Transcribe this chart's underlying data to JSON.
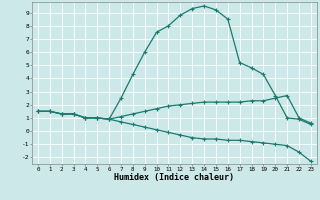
{
  "xlabel": "Humidex (Indice chaleur)",
  "bg_color": "#cce8e8",
  "grid_color": "#ffffff",
  "line_color": "#1a7a6e",
  "xlim": [
    -0.5,
    23.5
  ],
  "ylim": [
    -2.5,
    9.8
  ],
  "xticks": [
    0,
    1,
    2,
    3,
    4,
    5,
    6,
    7,
    8,
    9,
    10,
    11,
    12,
    13,
    14,
    15,
    16,
    17,
    18,
    19,
    20,
    21,
    22,
    23
  ],
  "yticks": [
    -2,
    -1,
    0,
    1,
    2,
    3,
    4,
    5,
    6,
    7,
    8,
    9
  ],
  "curve1_x": [
    0,
    1,
    2,
    3,
    4,
    5,
    6,
    7,
    8,
    9,
    10,
    11,
    12,
    13,
    14,
    15,
    16,
    17,
    18,
    19,
    20,
    21,
    22,
    23
  ],
  "curve1_y": [
    1.5,
    1.5,
    1.3,
    1.3,
    1.0,
    1.0,
    0.9,
    2.5,
    4.3,
    6.0,
    7.5,
    8.0,
    8.8,
    9.3,
    9.5,
    9.2,
    8.5,
    5.2,
    4.8,
    4.3,
    2.7,
    1.0,
    0.9,
    0.5
  ],
  "curve2_x": [
    0,
    1,
    2,
    3,
    4,
    5,
    6,
    7,
    8,
    9,
    10,
    11,
    12,
    13,
    14,
    15,
    16,
    17,
    18,
    19,
    20,
    21,
    22,
    23
  ],
  "curve2_y": [
    1.5,
    1.5,
    1.3,
    1.3,
    1.0,
    1.0,
    0.9,
    1.1,
    1.3,
    1.5,
    1.7,
    1.9,
    2.0,
    2.1,
    2.2,
    2.2,
    2.2,
    2.2,
    2.3,
    2.3,
    2.5,
    2.7,
    1.0,
    0.6
  ],
  "curve3_x": [
    0,
    1,
    2,
    3,
    4,
    5,
    6,
    7,
    8,
    9,
    10,
    11,
    12,
    13,
    14,
    15,
    16,
    17,
    18,
    19,
    20,
    21,
    22,
    23
  ],
  "curve3_y": [
    1.5,
    1.5,
    1.3,
    1.3,
    1.0,
    1.0,
    0.9,
    0.7,
    0.5,
    0.3,
    0.1,
    -0.1,
    -0.3,
    -0.5,
    -0.6,
    -0.6,
    -0.7,
    -0.7,
    -0.8,
    -0.9,
    -1.0,
    -1.1,
    -1.6,
    -2.3
  ]
}
